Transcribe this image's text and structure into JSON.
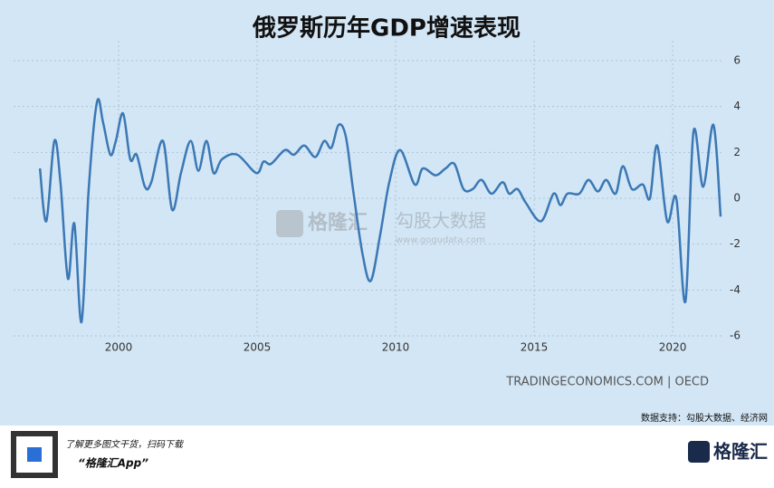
{
  "chart_data": {
    "type": "line",
    "title": "俄罗斯历年GDP增速表现",
    "x": [
      1997.16,
      1997.39,
      1997.68,
      1997.9,
      1998.17,
      1998.4,
      1998.66,
      1998.92,
      1999.22,
      1999.44,
      1999.7,
      1999.9,
      2000.16,
      2000.42,
      2000.65,
      2000.95,
      2001.18,
      2001.6,
      2001.93,
      2002.25,
      2002.6,
      2002.88,
      2003.17,
      2003.43,
      2003.73,
      2004.28,
      2004.97,
      2005.23,
      2005.5,
      2006.0,
      2006.33,
      2006.7,
      2007.1,
      2007.42,
      2007.68,
      2007.94,
      2008.2,
      2008.46,
      2008.8,
      2009.1,
      2009.44,
      2009.77,
      2010.16,
      2010.69,
      2010.98,
      2011.44,
      2011.8,
      2012.12,
      2012.45,
      2012.78,
      2013.1,
      2013.46,
      2013.86,
      2014.1,
      2014.4,
      2014.7,
      2015.25,
      2015.7,
      2015.95,
      2016.2,
      2016.63,
      2016.96,
      2017.3,
      2017.6,
      2017.94,
      2018.2,
      2018.53,
      2018.92,
      2019.18,
      2019.44,
      2019.8,
      2020.13,
      2020.46,
      2020.75,
      2021.1,
      2021.47,
      2021.73
    ],
    "series": [
      {
        "color": "#3b78b5",
        "values": [
          1.3,
          -1.0,
          2.5,
          0.7,
          -3.5,
          -1.1,
          -5.4,
          0.4,
          4.2,
          3.3,
          1.9,
          2.5,
          3.7,
          1.7,
          1.9,
          0.5,
          0.7,
          2.5,
          -0.5,
          1.1,
          2.5,
          1.2,
          2.5,
          1.1,
          1.7,
          1.9,
          1.1,
          1.6,
          1.5,
          2.1,
          1.9,
          2.3,
          1.8,
          2.5,
          2.2,
          3.2,
          2.7,
          0.4,
          -2.4,
          -3.6,
          -1.6,
          0.7,
          2.1,
          0.6,
          1.3,
          1.0,
          1.3,
          1.5,
          0.4,
          0.4,
          0.8,
          0.2,
          0.7,
          0.2,
          0.4,
          -0.2,
          -1.0,
          0.2,
          -0.3,
          0.2,
          0.2,
          0.8,
          0.3,
          0.8,
          0.2,
          1.4,
          0.4,
          0.6,
          0.0,
          2.3,
          -1.0,
          0.0,
          -4.5,
          2.9,
          0.5,
          3.2,
          -0.8
        ]
      }
    ],
    "xlim": [
      1996.96,
      2021.86
    ],
    "xticks": [
      2000,
      2005,
      2010,
      2015,
      2020
    ],
    "ylim": [
      -6,
      6
    ],
    "yticks": [
      -6,
      -4,
      -2,
      0,
      2,
      4,
      6
    ],
    "grid": true,
    "source": "TRADINGECONOMICS.COM | OECD",
    "data_support": "数据支持：勾股大数据、经济网",
    "watermark": {
      "brand": "格隆汇",
      "partner": "勾股大数据",
      "url": "www.gogudata.com"
    },
    "footer": {
      "tagline": "了解更多图文干货，扫码下载",
      "app": "“格隆汇App”",
      "logo": "格隆汇"
    }
  }
}
